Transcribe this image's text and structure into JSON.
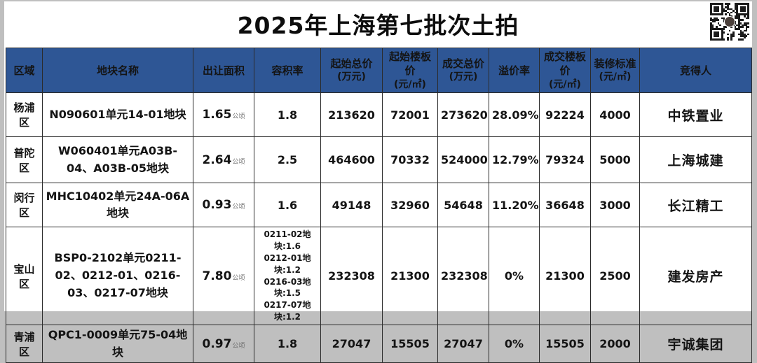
{
  "page": {
    "title": "2025年上海第七批次土拍"
  },
  "table": {
    "area_unit": "公顷",
    "headers": [
      {
        "label": "区域",
        "sub": ""
      },
      {
        "label": "地块名称",
        "sub": ""
      },
      {
        "label": "出让面积",
        "sub": ""
      },
      {
        "label": "容积率",
        "sub": ""
      },
      {
        "label": "起始总价",
        "sub": "(万元)"
      },
      {
        "label": "起始楼板价",
        "sub": "(元/㎡)"
      },
      {
        "label": "成交总价",
        "sub": "(万元)"
      },
      {
        "label": "溢价率",
        "sub": ""
      },
      {
        "label": "成交楼板价",
        "sub": "(元/㎡)"
      },
      {
        "label": "装修标准",
        "sub": "(元/㎡)"
      },
      {
        "label": "竞得人",
        "sub": ""
      }
    ],
    "rows": [
      {
        "region": "杨浦区",
        "plot": "N090601单元14-01地块",
        "area": "1.65",
        "far": "1.8",
        "start_total": "213620",
        "start_floor": "72001",
        "deal_total": "273620",
        "premium": "28.09%",
        "deal_floor": "92224",
        "decoration": "4000",
        "winner": "中铁置业"
      },
      {
        "region": "普陀区",
        "plot": "W060401单元A03B-04、A03B-05地块",
        "area": "2.64",
        "far": "2.5",
        "start_total": "464600",
        "start_floor": "70332",
        "deal_total": "524000",
        "premium": "12.79%",
        "deal_floor": "79324",
        "decoration": "5000",
        "winner": "上海城建"
      },
      {
        "region": "闵行区",
        "plot": "MHC10402单元24A-06A地块",
        "area": "0.93",
        "far": "1.6",
        "start_total": "49148",
        "start_floor": "32960",
        "deal_total": "54648",
        "premium": "11.20%",
        "deal_floor": "36648",
        "decoration": "3000",
        "winner": "长江精工"
      },
      {
        "region": "宝山区",
        "plot": "BSP0-2102单元0211-02、0212-01、0216-03、0217-07地块",
        "area": "7.80",
        "far": "",
        "far_lines": [
          "0211-02地块:1.6",
          "0212-01地块:1.2",
          "0216-03地块:1.5",
          "0217-07地块:1.2"
        ],
        "start_total": "232308",
        "start_floor": "21300",
        "deal_total": "232308",
        "premium": "0%",
        "deal_floor": "21300",
        "decoration": "2500",
        "winner": "建发房产"
      },
      {
        "region": "青浦区",
        "plot": "QPC1-0009单元75-04地块",
        "area": "0.97",
        "far": "1.8",
        "start_total": "27047",
        "start_floor": "15505",
        "deal_total": "27047",
        "premium": "0%",
        "deal_floor": "15505",
        "decoration": "2000",
        "winner": "宇诚集团"
      }
    ]
  }
}
